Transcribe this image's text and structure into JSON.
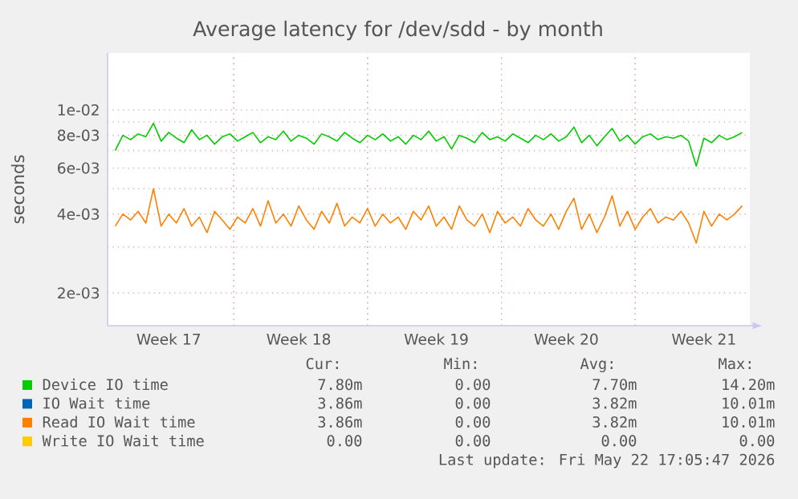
{
  "chart_data": {
    "type": "line",
    "title": "Average latency for /dev/sdd - by month",
    "ylabel": "seconds",
    "log": "y",
    "grid": true,
    "legend": "bottom",
    "ylim": [
      0.0015,
      0.0165
    ],
    "yticks": [
      {
        "value": 0.002,
        "label": "2e-03"
      },
      {
        "value": 0.003,
        "label": null
      },
      {
        "value": 0.004,
        "label": "4e-03"
      },
      {
        "value": 0.005,
        "label": null
      },
      {
        "value": 0.006,
        "label": "6e-03"
      },
      {
        "value": 0.007,
        "label": null
      },
      {
        "value": 0.008,
        "label": "8e-03"
      },
      {
        "value": 0.009,
        "label": null
      },
      {
        "value": 0.01,
        "label": "1e-02"
      }
    ],
    "categories": [
      null,
      null,
      null,
      null,
      null,
      null,
      null,
      "Week 17",
      null,
      null,
      null,
      null,
      null,
      null,
      null,
      null,
      null,
      null,
      null,
      null,
      null,
      null,
      null,
      null,
      "Week 18",
      null,
      null,
      null,
      null,
      null,
      null,
      null,
      null,
      null,
      null,
      null,
      null,
      null,
      null,
      null,
      null,
      null,
      "Week 19",
      null,
      null,
      null,
      null,
      null,
      null,
      null,
      null,
      null,
      null,
      null,
      null,
      null,
      null,
      null,
      null,
      "Week 20",
      null,
      null,
      null,
      null,
      null,
      null,
      null,
      null,
      null,
      null,
      null,
      null,
      null,
      null,
      null,
      null,
      null,
      "Week 21",
      null,
      null,
      null,
      null,
      null
    ],
    "series": [
      {
        "name": "Device IO time",
        "color": "#00cc00",
        "values": [
          0.007,
          0.008,
          0.0077,
          0.0081,
          0.0079,
          0.0089,
          0.0076,
          0.0082,
          0.0078,
          0.0075,
          0.0084,
          0.0077,
          0.008,
          0.0074,
          0.0079,
          0.0081,
          0.0076,
          0.0079,
          0.0082,
          0.0075,
          0.0079,
          0.0077,
          0.0083,
          0.0076,
          0.008,
          0.0078,
          0.0074,
          0.0081,
          0.0079,
          0.0076,
          0.0082,
          0.0078,
          0.0075,
          0.008,
          0.0077,
          0.0081,
          0.0076,
          0.0079,
          0.0074,
          0.008,
          0.0077,
          0.0083,
          0.0076,
          0.0079,
          0.0071,
          0.008,
          0.0078,
          0.0075,
          0.0082,
          0.0077,
          0.0079,
          0.0076,
          0.0081,
          0.0078,
          0.0075,
          0.008,
          0.0077,
          0.0081,
          0.0076,
          0.0079,
          0.0086,
          0.0075,
          0.008,
          0.0073,
          0.0079,
          0.0085,
          0.0076,
          0.008,
          0.0074,
          0.0079,
          0.0081,
          0.0077,
          0.0079,
          0.0078,
          0.008,
          0.0076,
          0.0061,
          0.0078,
          0.0075,
          0.008,
          0.0077,
          0.0079,
          0.0082
        ]
      },
      {
        "name": "IO Wait time",
        "color": "#0066b3",
        "values": [
          null,
          null,
          null,
          null,
          null,
          null,
          null,
          null,
          null,
          null,
          null,
          null,
          null,
          null,
          null,
          null,
          null,
          null,
          null,
          null,
          null,
          null,
          null,
          null,
          null,
          null,
          null,
          null,
          null,
          null,
          null,
          null,
          null,
          null,
          null,
          null,
          null,
          null,
          null,
          null,
          null,
          null,
          null,
          null,
          null,
          null,
          null,
          null,
          null,
          null,
          null,
          null,
          null,
          null,
          null,
          null,
          null,
          null,
          null,
          null,
          null,
          null,
          null,
          null,
          null,
          null,
          null,
          null,
          null,
          null,
          null,
          null,
          null,
          null,
          null,
          null,
          null,
          null,
          null,
          null,
          null,
          null,
          null
        ]
      },
      {
        "name": "Read IO Wait time",
        "color": "#ff8000",
        "values": [
          0.0036,
          0.004,
          0.0038,
          0.0041,
          0.0037,
          0.005,
          0.0036,
          0.004,
          0.0037,
          0.0042,
          0.0036,
          0.0039,
          0.0034,
          0.0041,
          0.0038,
          0.0035,
          0.0039,
          0.0037,
          0.0042,
          0.0036,
          0.0045,
          0.0037,
          0.004,
          0.0036,
          0.0043,
          0.0038,
          0.0035,
          0.0041,
          0.0037,
          0.0044,
          0.0036,
          0.0039,
          0.0037,
          0.0042,
          0.0036,
          0.004,
          0.0037,
          0.0039,
          0.0035,
          0.0041,
          0.0038,
          0.0043,
          0.0036,
          0.0039,
          0.0035,
          0.0043,
          0.0038,
          0.0036,
          0.004,
          0.0034,
          0.0041,
          0.0037,
          0.0039,
          0.0036,
          0.0042,
          0.0038,
          0.0036,
          0.004,
          0.0035,
          0.0041,
          0.0046,
          0.0035,
          0.004,
          0.0034,
          0.0039,
          0.0047,
          0.0036,
          0.0041,
          0.0035,
          0.0039,
          0.0042,
          0.0037,
          0.0039,
          0.0038,
          0.0041,
          0.0037,
          0.0031,
          0.0041,
          0.0036,
          0.004,
          0.0038,
          0.004,
          0.0043
        ]
      },
      {
        "name": "Write IO Wait time",
        "color": "#ffcc00",
        "values": [
          null,
          null,
          null,
          null,
          null,
          null,
          null,
          null,
          null,
          null,
          null,
          null,
          null,
          null,
          null,
          null,
          null,
          null,
          null,
          null,
          null,
          null,
          null,
          null,
          null,
          null,
          null,
          null,
          null,
          null,
          null,
          null,
          null,
          null,
          null,
          null,
          null,
          null,
          null,
          null,
          null,
          null,
          null,
          null,
          null,
          null,
          null,
          null,
          null,
          null,
          null,
          null,
          null,
          null,
          null,
          null,
          null,
          null,
          null,
          null,
          null,
          null,
          null,
          null,
          null,
          null,
          null,
          null,
          null,
          null,
          null,
          null,
          null,
          null,
          null,
          null,
          null,
          null,
          null,
          null,
          null,
          null,
          null
        ]
      }
    ],
    "annotations": [
      "Cur:",
      "Min:",
      "Avg:",
      "Max:",
      "7.80m",
      "0.00",
      "7.70m",
      "14.20m",
      "3.86m",
      "0.00",
      "3.82m",
      "10.01m",
      "3.86m",
      "0.00",
      "3.82m",
      "10.01m",
      "0.00",
      "0.00",
      "0.00",
      "0.00",
      "Last update: Fri May 22 17:05:47 2026"
    ]
  }
}
